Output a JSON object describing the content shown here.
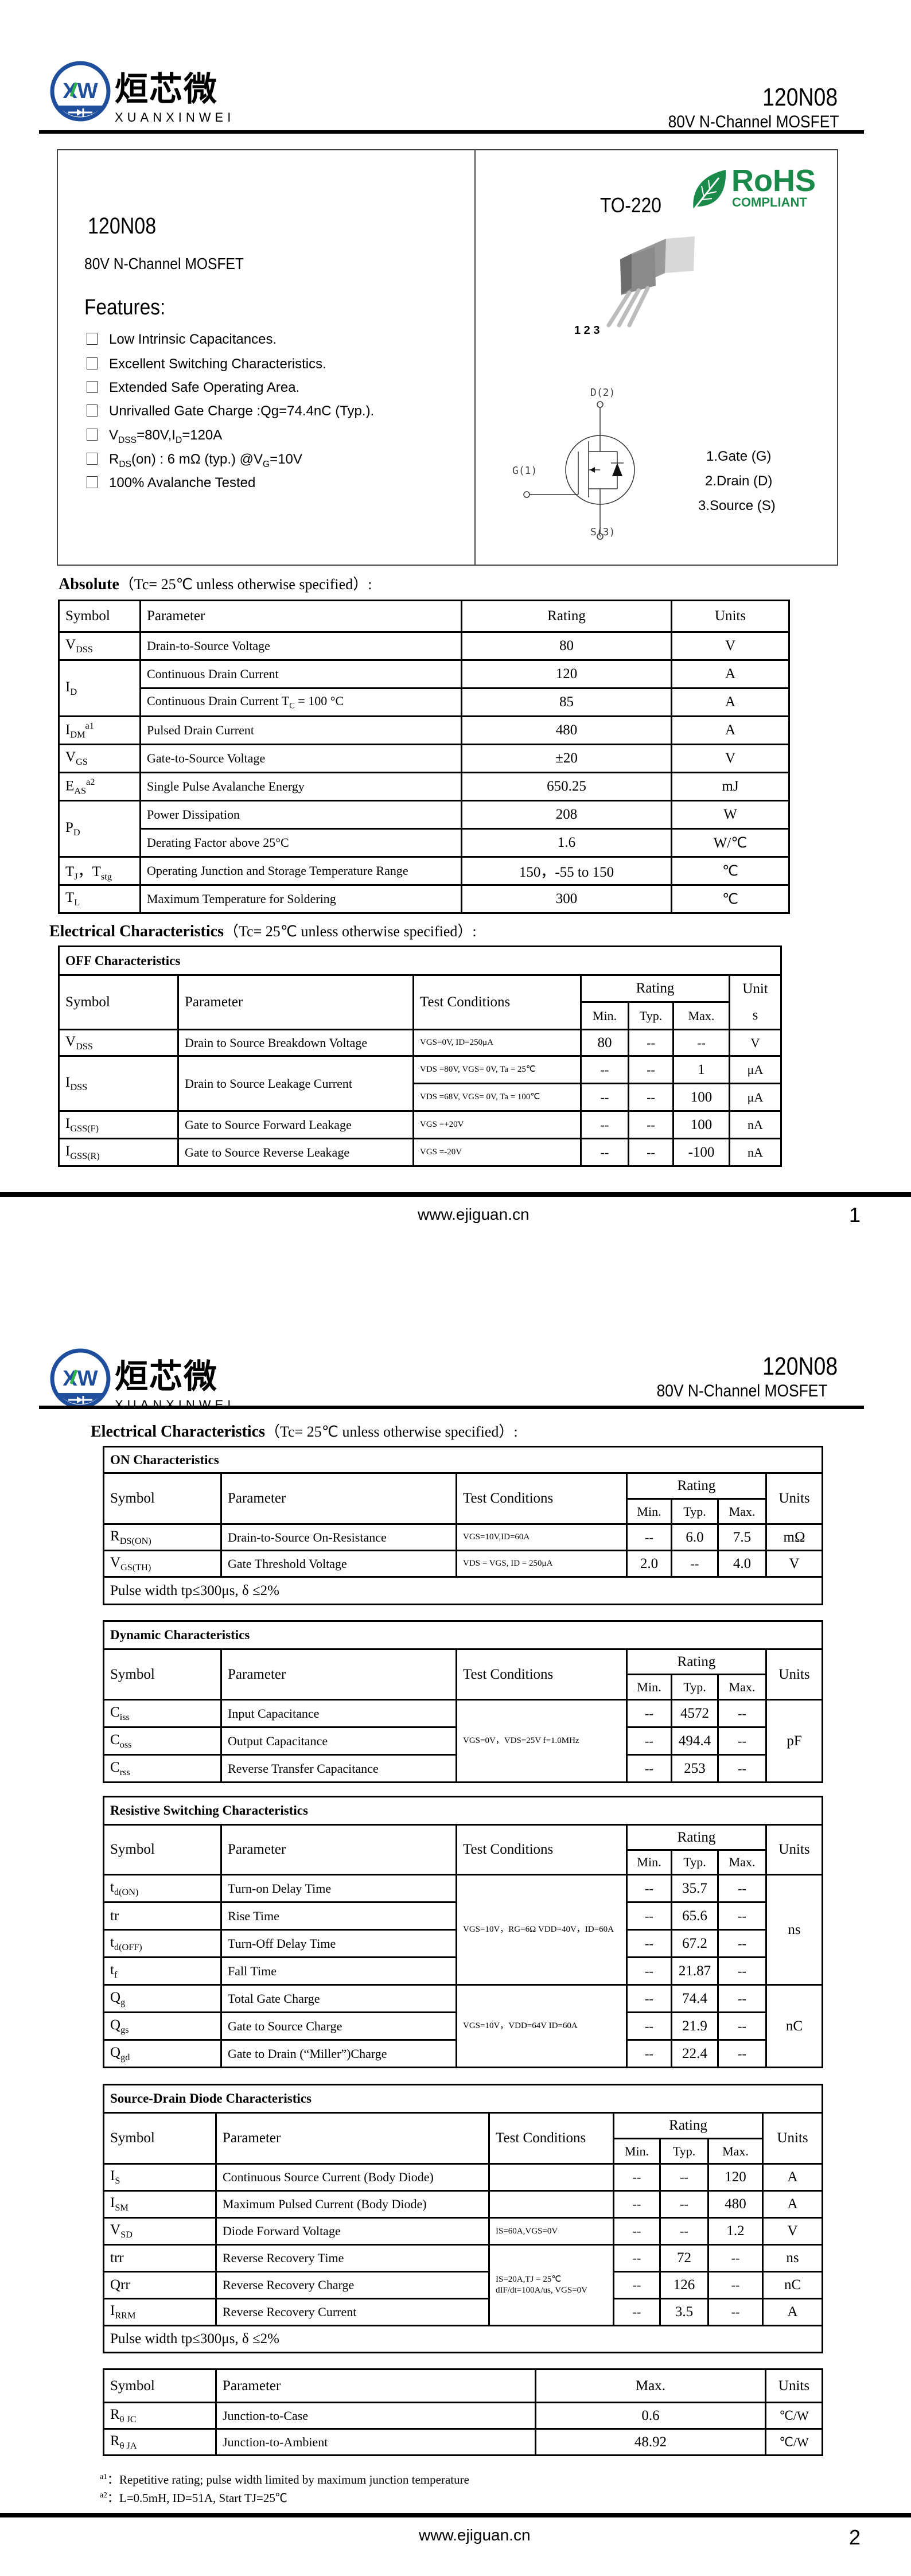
{
  "brand": {
    "logo_text": "XW",
    "name_cn": "烜芯微",
    "name_en": "XUANXINWEI",
    "logo_color": "#1f4e9c",
    "logo_accent": "#2db34a"
  },
  "header": {
    "part": "120N08",
    "subtitle": "80V N-Channel MOSFET"
  },
  "overview": {
    "part": "120N08",
    "subtitle": "80V N-Channel MOSFET",
    "features_title": "Features:",
    "features": [
      "Low Intrinsic Capacitances.",
      "Excellent Switching Characteristics.",
      "Extended Safe Operating Area.",
      "Unrivalled Gate Charge :Qg=74.4nC (Typ.)."
    ],
    "f5": {
      "a": "V",
      "a_sub": "DSS",
      "b": "=80V,I",
      "b_sub": "D",
      "c": "=120A"
    },
    "f6": {
      "a": "R",
      "a_sub": "DS",
      "b": "(on) : 6 mΩ (typ.) @V",
      "b_sub": "G",
      "c": "=10V"
    },
    "f7": "100% Avalanche Tested",
    "package": "TO-220",
    "rohs": {
      "main": "RoHS",
      "sub": "COMPLIANT",
      "color": "#1a8a4a"
    },
    "pin_numbers": "1 2 3",
    "sym_d": "D(2)",
    "sym_g": "G(1)",
    "sym_s": "S(3)",
    "pins": [
      "1.Gate (G)",
      "2.Drain (D)",
      "3.Source (S)"
    ]
  },
  "absolute": {
    "title": "Absolute",
    "condition": "（Tc= 25℃  unless otherwise specified）:",
    "headers": [
      "Symbol",
      "Parameter",
      "Rating",
      "Units"
    ],
    "rows": [
      {
        "sym": "V",
        "sub": "DSS",
        "param": "Drain-to-Source Voltage",
        "rating": "80",
        "unit": "V"
      },
      {
        "sym": "I",
        "sub": "D",
        "param": "Continuous Drain Current",
        "rating": "120",
        "unit": "A"
      },
      {
        "param": "Continuous Drain Current T",
        "psub": "C",
        "ptail": " = 100 °C",
        "rating": "85",
        "unit": "A"
      },
      {
        "sym": "I",
        "sub": "DM",
        "sup": "a1",
        "param": "Pulsed Drain Current",
        "rating": "480",
        "unit": "A"
      },
      {
        "sym": "V",
        "sub": "GS",
        "param": "Gate-to-Source Voltage",
        "rating": "±20",
        "unit": "V"
      },
      {
        "sym": "E",
        "sub": "AS",
        "sup": "a2",
        "param": "Single Pulse Avalanche Energy",
        "rating": "650.25",
        "unit": "mJ"
      },
      {
        "sym": "P",
        "sub": "D",
        "param": "Power Dissipation",
        "rating": "208",
        "unit": "W"
      },
      {
        "param": "Derating Factor above 25°C",
        "rating": "1.6",
        "unit": "W/℃"
      },
      {
        "sym": "T",
        "sub": "J",
        "sym2": "，T",
        "sub2": "stg",
        "param": "Operating Junction and Storage Temperature Range",
        "rating": "150，-55 to 150",
        "unit": "℃"
      },
      {
        "sym": "T",
        "sub": "L",
        "param": "Maximum Temperature for Soldering",
        "rating": "300",
        "unit": "℃"
      }
    ]
  },
  "electrical": {
    "title": "Electrical Characteristics",
    "condition": "（Tc= 25℃  unless otherwise specified）:"
  },
  "cols": {
    "symbol": "Symbol",
    "parameter": "Parameter",
    "test": "Test Conditions",
    "rating": "Rating",
    "min": "Min.",
    "typ": "Typ.",
    "max": "Max.",
    "units": "Units",
    "unit_a": "Unit",
    "unit_b": "s",
    "dash": "--"
  },
  "off": {
    "title": "OFF Characteristics",
    "rows": [
      {
        "sym": "V",
        "sub": "DSS",
        "param": "Drain to Source Breakdown Voltage",
        "tc": "VGS=0V, ID=250μA",
        "min": "80",
        "typ": "--",
        "max": "--",
        "unit": "V"
      },
      {
        "sym": "I",
        "sub": "DSS",
        "param": "Drain to Source Leakage Current",
        "tc": "VDS =80V, VGS= 0V, Ta = 25℃",
        "min": "--",
        "typ": "--",
        "max": "1",
        "unit": "μA"
      },
      {
        "tc": "VDS =68V, VGS= 0V, Ta = 100℃",
        "min": "--",
        "typ": "--",
        "max": "100",
        "unit": "μA"
      },
      {
        "sym": "I",
        "sub": "GSS(F)",
        "param": "Gate to Source Forward Leakage",
        "tc": "VGS =+20V",
        "min": "--",
        "typ": "--",
        "max": "100",
        "unit": "nA"
      },
      {
        "sym": "I",
        "sub": "GSS(R)",
        "param": "Gate to Source Reverse Leakage",
        "tc": "VGS =-20V",
        "min": "--",
        "typ": "--",
        "max": "-100",
        "unit": "nA"
      }
    ]
  },
  "on": {
    "title": "ON Characteristics",
    "rows": [
      {
        "sym": "R",
        "sub": "DS(ON)",
        "param": "Drain-to-Source On-Resistance",
        "tc": "VGS=10V,ID=60A",
        "min": "--",
        "typ": "6.0",
        "max": "7.5",
        "unit": "mΩ"
      },
      {
        "sym": "V",
        "sub": "GS(TH)",
        "param": "Gate Threshold Voltage",
        "tc": "VDS = VGS, ID = 250μA",
        "min": "2.0",
        "typ": "--",
        "max": "4.0",
        "unit": "V"
      }
    ],
    "note": "Pulse width tp≤300μs, δ ≤2%"
  },
  "dynamic": {
    "title": "Dynamic Characteristics",
    "tc": "VGS=0V，VDS=25V f=1.0MHz",
    "unit": "pF",
    "rows": [
      {
        "sym": "C",
        "sub": "iss",
        "param": "Input Capacitance",
        "min": "--",
        "typ": "4572",
        "max": "--"
      },
      {
        "sym": "C",
        "sub": "oss",
        "param": "Output Capacitance",
        "min": "--",
        "typ": "494.4",
        "max": "--"
      },
      {
        "sym": "C",
        "sub": "rss",
        "param": "Reverse Transfer Capacitance",
        "min": "--",
        "typ": "253",
        "max": "--"
      }
    ]
  },
  "switching": {
    "title": "Resistive Switching Characteristics",
    "tc1": "VGS=10V，RG=6Ω VDD=40V，ID=60A",
    "unit1": "ns",
    "tc2": "VGS=10V，VDD=64V ID=60A",
    "unit2": "nC",
    "rows": [
      {
        "sym": "t",
        "sub": "d(ON)",
        "param": "Turn-on Delay Time",
        "min": "--",
        "typ": "35.7",
        "max": "--"
      },
      {
        "sym": "tr",
        "param": "Rise Time",
        "min": "--",
        "typ": "65.6",
        "max": "--"
      },
      {
        "sym": "t",
        "sub": "d(OFF)",
        "param": "Turn-Off Delay Time",
        "min": "--",
        "typ": "67.2",
        "max": "--"
      },
      {
        "sym": "t",
        "sub": "f",
        "param": "Fall Time",
        "min": "--",
        "typ": "21.87",
        "max": "--"
      },
      {
        "sym": "Q",
        "sub": "g",
        "param": "Total Gate Charge",
        "min": "--",
        "typ": "74.4",
        "max": "--"
      },
      {
        "sym": "Q",
        "sub": "gs",
        "param": "Gate to Source Charge",
        "min": "--",
        "typ": "21.9",
        "max": "--"
      },
      {
        "sym": "Q",
        "sub": "gd",
        "param": "Gate to Drain (“Miller”)Charge",
        "min": "--",
        "typ": "22.4",
        "max": "--"
      }
    ]
  },
  "diode": {
    "title": "Source-Drain Diode Characteristics",
    "tc_shared": "IS=20A,TJ = 25℃ dIF/dt=100A/us, VGS=0V",
    "rows": [
      {
        "sym": "I",
        "sub": "S",
        "param": "Continuous Source Current (Body Diode)",
        "tc": "",
        "min": "--",
        "typ": "--",
        "max": "120",
        "unit": "A"
      },
      {
        "sym": "I",
        "sub": "SM",
        "param": "Maximum Pulsed Current (Body Diode)",
        "tc": "",
        "min": "--",
        "typ": "--",
        "max": "480",
        "unit": "A"
      },
      {
        "sym": "V",
        "sub": "SD",
        "param": "Diode Forward Voltage",
        "tc": "IS=60A,VGS=0V",
        "min": "--",
        "typ": "--",
        "max": "1.2",
        "unit": "V"
      },
      {
        "sym": "trr",
        "param": "Reverse Recovery Time",
        "min": "--",
        "typ": "72",
        "max": "--",
        "unit": "ns"
      },
      {
        "sym": "Qrr",
        "param": "Reverse Recovery Charge",
        "min": "--",
        "typ": "126",
        "max": "--",
        "unit": "nC"
      },
      {
        "sym": "I",
        "sub": "RRM",
        "param": "Reverse Recovery Current",
        "min": "--",
        "typ": "3.5",
        "max": "--",
        "unit": "A"
      }
    ],
    "note": "Pulse width tp≤300μs, δ ≤2%"
  },
  "thermal": {
    "rows": [
      {
        "sym": "R",
        "sub": "θ JC",
        "param": "Junction-to-Case",
        "max": "0.6",
        "unit": "℃/W"
      },
      {
        "sym": "R",
        "sub": "θ JA",
        "param": "Junction-to-Ambient",
        "max": "48.92",
        "unit": "℃/W"
      }
    ]
  },
  "notes": [
    {
      "mark": "a1",
      "text": "：Repetitive rating; pulse width limited by maximum junction temperature"
    },
    {
      "mark": "a2",
      "text": "：L=0.5mH, ID=51A, Start TJ=25℃"
    }
  ],
  "footer": {
    "url": "www.ejiguan.cn",
    "page1": "1",
    "page2": "2"
  }
}
